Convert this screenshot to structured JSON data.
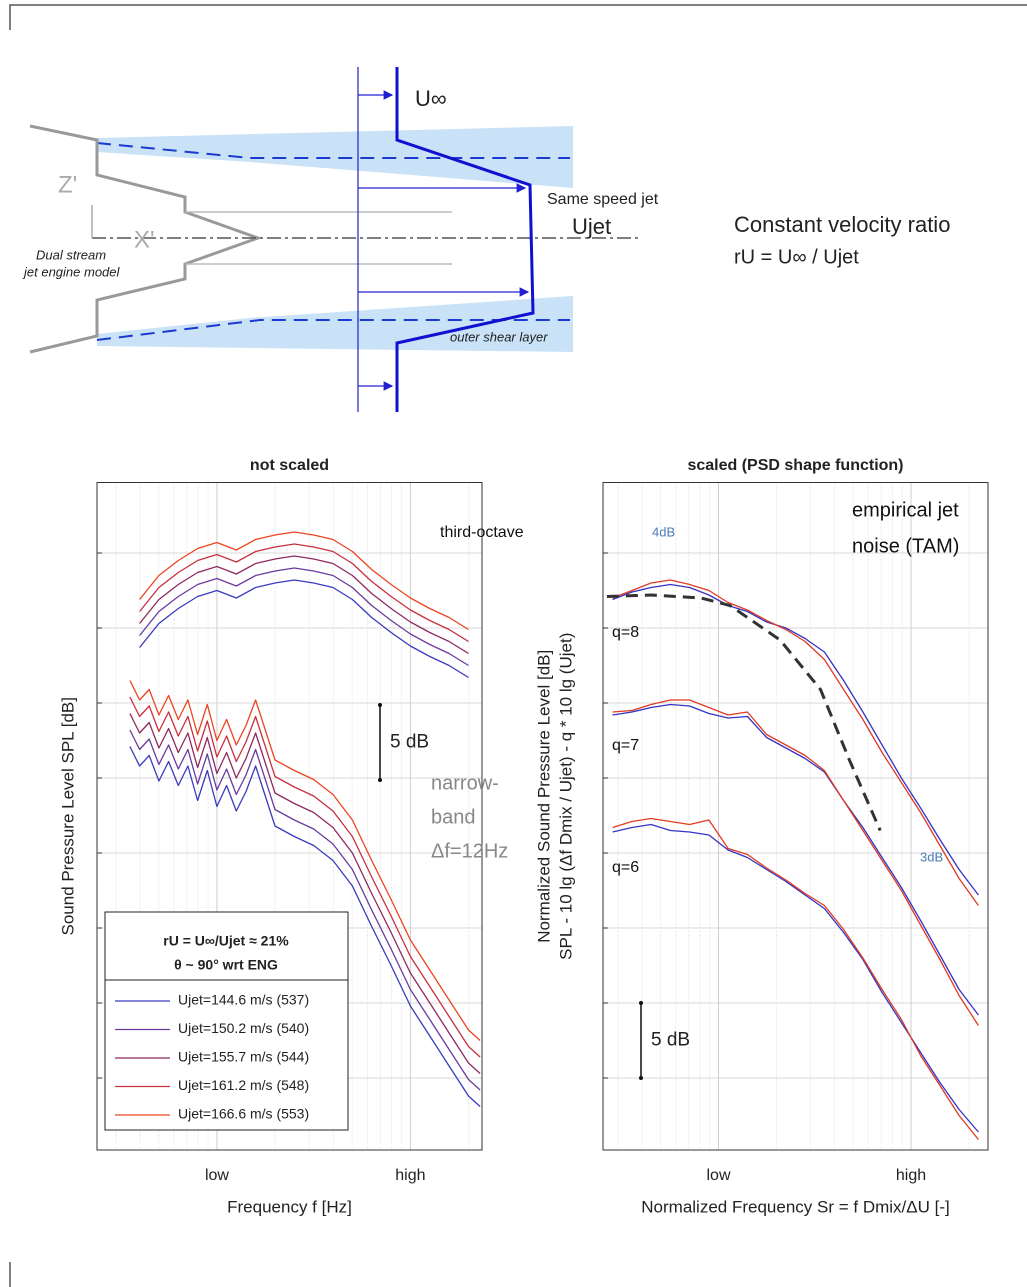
{
  "diagram": {
    "u_inf": "U∞",
    "same_speed": "Same speed jet",
    "u_jet": "Ujet",
    "ratio_title": "Constant velocity ratio",
    "ratio_formula": "rU = U∞ / Ujet",
    "z_axis": "Z'",
    "x_axis": "X'",
    "engine_1": "Dual stream",
    "engine_2": "jet engine model",
    "shear": "outer shear layer"
  },
  "chart_data": [
    {
      "type": "line",
      "title": "not scaled",
      "xlabel": "Frequency f [Hz]",
      "ylabel": "Sound Pressure Level SPL [dB]",
      "xlim": [
        -0.62,
        1.37
      ],
      "ylim": [
        0,
        44.5
      ],
      "xticks": [
        {
          "value": 0,
          "label": "low"
        },
        {
          "value": 1,
          "label": "high"
        }
      ],
      "yticks": [
        4.8,
        9.8,
        14.8,
        19.8,
        24.8,
        29.8,
        34.8,
        39.8
      ],
      "grid": true,
      "minor_grid": true,
      "x": [
        -0.45,
        -0.4,
        -0.35,
        -0.3,
        -0.25,
        -0.2,
        -0.15,
        -0.1,
        -0.05,
        0,
        0.05,
        0.1,
        0.15,
        0.2,
        0.3,
        0.4,
        0.5,
        0.6,
        0.7,
        0.8,
        0.9,
        1.0,
        1.1,
        1.2,
        1.3,
        1.36
      ],
      "x_third_octave": [
        -0.4,
        -0.3,
        -0.2,
        -0.1,
        0,
        0.1,
        0.2,
        0.3,
        0.4,
        0.5,
        0.6,
        0.7,
        0.8,
        0.9,
        1.0,
        1.1,
        1.2,
        1.3
      ],
      "series": [
        {
          "name": "Ujet=144.6 m/s  (537)",
          "color": "#3b3bbd",
          "values": [
            26.9,
            25.6,
            26.3,
            24.6,
            25.9,
            24.3,
            25.6,
            23.3,
            25.3,
            22.9,
            24.3,
            22.6,
            23.9,
            25.6,
            21.6,
            20.9,
            20.3,
            19.3,
            17.6,
            14.9,
            12.3,
            9.6,
            7.6,
            5.6,
            3.6,
            2.9
          ],
          "third_octave_values": [
            33.5,
            35.1,
            36.1,
            36.9,
            37.3,
            36.8,
            37.5,
            37.8,
            38.0,
            37.8,
            37.5,
            36.7,
            35.5,
            34.5,
            33.6,
            32.9,
            32.3,
            31.5
          ]
        },
        {
          "name": "Ujet=150.2 m/s  (540)",
          "color": "#6a3a9e",
          "values": [
            28.0,
            26.7,
            27.4,
            25.7,
            27.0,
            25.4,
            26.7,
            24.4,
            26.4,
            24.0,
            25.4,
            23.7,
            25.0,
            26.7,
            22.7,
            22.0,
            21.4,
            20.4,
            18.7,
            16.0,
            13.4,
            10.7,
            8.7,
            6.7,
            4.7,
            4.0
          ],
          "third_octave_values": [
            34.3,
            35.9,
            36.9,
            37.7,
            38.1,
            37.6,
            38.3,
            38.6,
            38.8,
            38.6,
            38.3,
            37.5,
            36.3,
            35.3,
            34.4,
            33.7,
            33.1,
            32.3
          ]
        },
        {
          "name": "Ujet=155.7 m/s  (544)",
          "color": "#8e2a5e",
          "values": [
            29.1,
            27.8,
            28.5,
            26.8,
            28.1,
            26.5,
            27.8,
            25.5,
            27.5,
            25.1,
            26.5,
            24.8,
            26.1,
            27.8,
            23.8,
            23.1,
            22.5,
            21.5,
            19.8,
            17.1,
            14.5,
            11.8,
            9.8,
            7.8,
            5.8,
            5.1
          ],
          "third_octave_values": [
            35.1,
            36.7,
            37.7,
            38.5,
            38.9,
            38.4,
            39.1,
            39.4,
            39.6,
            39.4,
            39.1,
            38.3,
            37.1,
            36.1,
            35.2,
            34.5,
            33.9,
            33.1
          ]
        },
        {
          "name": "Ujet=161.2 m/s  (548)",
          "color": "#c8303e",
          "values": [
            30.2,
            28.9,
            29.6,
            27.9,
            29.2,
            27.6,
            28.9,
            26.6,
            28.6,
            26.2,
            27.6,
            25.9,
            27.2,
            28.9,
            24.9,
            24.2,
            23.6,
            22.6,
            20.9,
            18.2,
            15.6,
            12.9,
            10.9,
            8.9,
            6.9,
            6.2
          ],
          "third_octave_values": [
            35.9,
            37.5,
            38.5,
            39.3,
            39.7,
            39.2,
            39.9,
            40.2,
            40.4,
            40.2,
            39.9,
            39.1,
            37.9,
            36.9,
            36.0,
            35.3,
            34.7,
            33.9
          ]
        },
        {
          "name": "Ujet=166.6 m/s  (553)",
          "color": "#ec4420",
          "values": [
            31.3,
            30.0,
            30.7,
            29.0,
            30.3,
            28.7,
            30.0,
            27.7,
            29.7,
            27.3,
            28.7,
            27.0,
            28.3,
            30.0,
            26.0,
            25.3,
            24.7,
            23.7,
            22.0,
            19.3,
            16.7,
            14.0,
            12.0,
            10.0,
            8.0,
            7.3
          ],
          "third_octave_values": [
            36.7,
            38.3,
            39.3,
            40.1,
            40.5,
            40.0,
            40.7,
            41.0,
            41.2,
            41.0,
            40.7,
            39.9,
            38.7,
            37.7,
            36.8,
            36.1,
            35.5,
            34.7
          ]
        }
      ],
      "legend_title": [
        "rU = U∞/Ujet ≈ 21%",
        "θ ~ 90° wrt ENG"
      ],
      "annotations": [
        "third-octave",
        "narrow-",
        "band",
        "Δf=12Hz"
      ],
      "scale_bar": {
        "value": 5,
        "label": "5 dB"
      }
    },
    {
      "type": "line",
      "title": "scaled (PSD shape function)",
      "xlabel": "Normalized Frequency Sr = f Dmix/ΔU [-]",
      "ylabel": [
        "Normalized Sound Pressure Level [dB]",
        "SPL - 10 lg (Δf Dmix / Ujet) - q * 10 lg (Ujet)"
      ],
      "xlim": [
        -0.6,
        1.4
      ],
      "ylim": [
        0,
        44.5
      ],
      "xticks": [
        {
          "value": 0,
          "label": "low"
        },
        {
          "value": 1,
          "label": "high"
        }
      ],
      "yticks": [
        4.8,
        9.8,
        14.8,
        19.8,
        24.8,
        29.8,
        34.8,
        39.8
      ],
      "grid": true,
      "minor_grid": true,
      "x": [
        -0.55,
        -0.45,
        -0.35,
        -0.25,
        -0.15,
        -0.05,
        0.05,
        0.15,
        0.25,
        0.35,
        0.45,
        0.55,
        0.65,
        0.75,
        0.85,
        0.95,
        1.05,
        1.15,
        1.25,
        1.35
      ],
      "series": [
        {
          "color": "#3434c4",
          "values": [
            36.7,
            37.2,
            37.5,
            37.7,
            37.5,
            37.0,
            36.3,
            35.9,
            35.2,
            34.8,
            34.1,
            33.2,
            31.3,
            29.2,
            27.0,
            24.8,
            22.8,
            20.7,
            18.7,
            17.0
          ]
        },
        {
          "color": "#e03a24",
          "values": [
            36.8,
            37.3,
            37.8,
            38.0,
            37.7,
            37.3,
            36.5,
            36.0,
            35.3,
            34.7,
            33.9,
            32.7,
            30.7,
            28.7,
            26.5,
            24.5,
            22.5,
            20.3,
            18.1,
            16.3
          ]
        },
        {
          "color": "#3434c4",
          "values": [
            29.0,
            29.2,
            29.5,
            29.7,
            29.6,
            29.1,
            28.8,
            28.9,
            27.5,
            26.8,
            26.1,
            25.2,
            23.3,
            21.5,
            19.5,
            17.5,
            15.3,
            13.0,
            10.7,
            9.0
          ]
        },
        {
          "color": "#e03a24",
          "values": [
            29.2,
            29.3,
            29.7,
            30.0,
            30.0,
            29.5,
            29.0,
            29.2,
            27.7,
            27.0,
            26.3,
            25.3,
            23.3,
            21.3,
            19.3,
            17.3,
            15.0,
            12.7,
            10.3,
            8.3
          ]
        },
        {
          "color": "#3434c4",
          "values": [
            21.2,
            21.5,
            21.7,
            21.3,
            21.2,
            21.0,
            20.0,
            19.5,
            18.7,
            17.9,
            17.0,
            16.1,
            14.5,
            12.7,
            10.5,
            8.5,
            6.5,
            4.5,
            2.7,
            1.2
          ]
        },
        {
          "color": "#e03a24",
          "values": [
            21.5,
            21.9,
            22.1,
            21.9,
            21.7,
            22.0,
            20.1,
            19.7,
            18.8,
            18.0,
            17.1,
            16.3,
            14.7,
            12.8,
            10.7,
            8.7,
            6.3,
            4.3,
            2.3,
            0.7
          ]
        }
      ],
      "model": {
        "color": "#333333",
        "dash": true,
        "x": [
          -0.58,
          -0.35,
          -0.09,
          0.06,
          0.32,
          0.53,
          0.68,
          0.84
        ],
        "values": [
          36.9,
          37.0,
          36.8,
          36.3,
          34.0,
          30.7,
          26.0,
          21.3
        ]
      },
      "annotations": [
        "empirical jet",
        "noise (TAM)",
        "q=8",
        "q=7",
        "q=6",
        "4dB",
        "3dB"
      ],
      "scale_bar": {
        "value": 5,
        "label": "5 dB"
      }
    }
  ]
}
